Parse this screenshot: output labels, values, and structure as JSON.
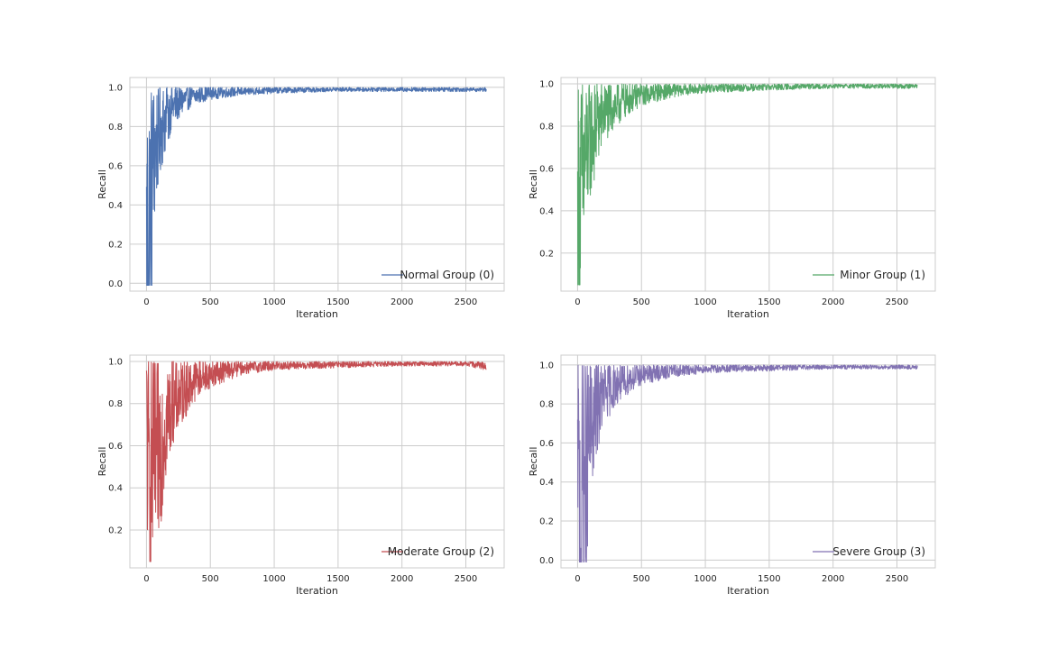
{
  "chart_data": [
    {
      "type": "line",
      "xlabel": "Iteration",
      "ylabel": "Recall",
      "xlim": [
        -130,
        2800
      ],
      "ylim": [
        -0.04,
        1.05
      ],
      "xticks": [
        0,
        500,
        1000,
        1500,
        2000,
        2500
      ],
      "yticks": [
        0.0,
        0.2,
        0.4,
        0.6,
        0.8,
        1.0
      ],
      "ytick_labels": [
        "0.0",
        "0.2",
        "0.4",
        "0.6",
        "0.8",
        "1.0"
      ],
      "grid": true,
      "legend_position": "lower-right",
      "series": [
        {
          "name": "Normal Group (0)",
          "color": "#4c72b0",
          "x": [
            0,
            10,
            20,
            30,
            40,
            50,
            75,
            100,
            150,
            200,
            300,
            400,
            500,
            750,
            1000,
            1500,
            2000,
            2500,
            2660
          ],
          "y": [
            0.04,
            0.27,
            0.35,
            0.38,
            0.44,
            0.62,
            0.7,
            0.78,
            0.84,
            0.9,
            0.94,
            0.96,
            0.97,
            0.98,
            0.985,
            0.99,
            0.99,
            0.99,
            0.99
          ]
        }
      ]
    },
    {
      "type": "line",
      "xlabel": "Iteration",
      "ylabel": "Recall",
      "xlim": [
        -130,
        2800
      ],
      "ylim": [
        0.02,
        1.03
      ],
      "xticks": [
        0,
        500,
        1000,
        1500,
        2000,
        2500
      ],
      "yticks": [
        0.2,
        0.4,
        0.6,
        0.8,
        1.0
      ],
      "ytick_labels": [
        "0.2",
        "0.4",
        "0.6",
        "0.8",
        "1.0"
      ],
      "grid": true,
      "legend_position": "lower-right",
      "series": [
        {
          "name": "Minor Group (1)",
          "color": "#55a868",
          "x": [
            0,
            10,
            20,
            30,
            40,
            50,
            75,
            100,
            150,
            200,
            300,
            400,
            500,
            750,
            1000,
            1500,
            2000,
            2500,
            2660
          ],
          "y": [
            0.07,
            0.38,
            0.45,
            0.5,
            0.55,
            0.6,
            0.68,
            0.74,
            0.8,
            0.86,
            0.9,
            0.93,
            0.95,
            0.97,
            0.98,
            0.985,
            0.99,
            0.99,
            0.99
          ]
        }
      ]
    },
    {
      "type": "line",
      "xlabel": "Iteration",
      "ylabel": "Recall",
      "xlim": [
        -130,
        2800
      ],
      "ylim": [
        0.02,
        1.03
      ],
      "xticks": [
        0,
        500,
        1000,
        1500,
        2000,
        2500
      ],
      "yticks": [
        0.2,
        0.4,
        0.6,
        0.8,
        1.0
      ],
      "ytick_labels": [
        "0.2",
        "0.4",
        "0.6",
        "0.8",
        "1.0"
      ],
      "grid": true,
      "legend_position": "lower-right",
      "series": [
        {
          "name": "Moderate Group (2)",
          "color": "#c44e52",
          "x": [
            0,
            10,
            20,
            30,
            40,
            50,
            75,
            100,
            150,
            200,
            300,
            400,
            500,
            750,
            1000,
            1500,
            2000,
            2500,
            2660
          ],
          "y": [
            0.88,
            0.5,
            0.48,
            0.5,
            0.5,
            0.52,
            0.55,
            0.6,
            0.72,
            0.8,
            0.87,
            0.92,
            0.94,
            0.97,
            0.98,
            0.985,
            0.99,
            0.99,
            0.98
          ]
        }
      ]
    },
    {
      "type": "line",
      "xlabel": "Iteration",
      "ylabel": "Recall",
      "xlim": [
        -130,
        2800
      ],
      "ylim": [
        -0.04,
        1.05
      ],
      "xticks": [
        0,
        500,
        1000,
        1500,
        2000,
        2500
      ],
      "yticks": [
        0.0,
        0.2,
        0.4,
        0.6,
        0.8,
        1.0
      ],
      "ytick_labels": [
        "0.0",
        "0.2",
        "0.4",
        "0.6",
        "0.8",
        "1.0"
      ],
      "grid": true,
      "legend_position": "lower-right",
      "series": [
        {
          "name": "Severe Group (3)",
          "color": "#8172b2",
          "x": [
            0,
            10,
            20,
            30,
            40,
            50,
            75,
            100,
            150,
            200,
            300,
            400,
            500,
            750,
            1000,
            1500,
            2000,
            2500,
            2660
          ],
          "y": [
            0.0,
            0.3,
            0.2,
            0.25,
            0.35,
            0.4,
            0.5,
            0.65,
            0.78,
            0.85,
            0.9,
            0.93,
            0.95,
            0.97,
            0.98,
            0.985,
            0.99,
            0.99,
            0.99
          ]
        }
      ]
    }
  ]
}
